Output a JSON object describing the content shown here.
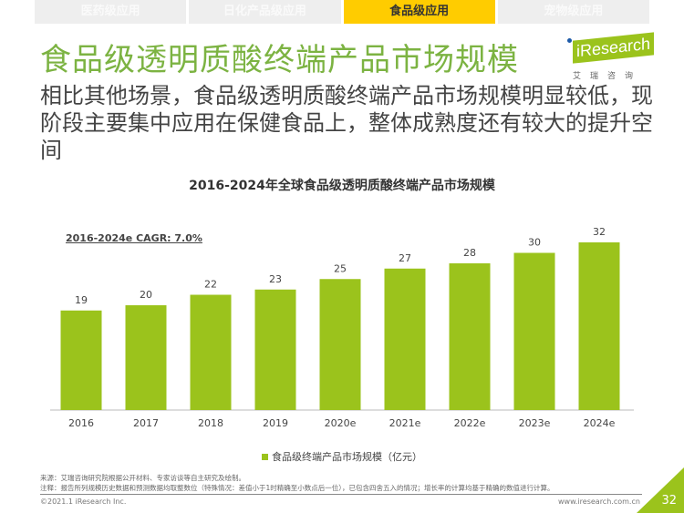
{
  "tabs": [
    {
      "label": "医药级应用"
    },
    {
      "label": "日化产品级应用"
    },
    {
      "label": "食品级应用",
      "active": true
    },
    {
      "label": "宠物级应用"
    }
  ],
  "header": {
    "title": "食品级透明质酸终端产品市场规模",
    "logo_text": "iResearch",
    "logo_cn": "艾瑞咨询"
  },
  "subtitle": "相比其他场景，食品级透明质酸终端产品市场规模明显较低，现阶段主要集中应用在保健食品上，整体成熟度还有较大的提升空间",
  "colors": {
    "accent": "#7cb342",
    "bar": "#9bc31c",
    "tab_active": "#ffcc00"
  },
  "chart_data": {
    "type": "bar",
    "title": "2016-2024年全球食品级透明质酸终端产品市场规模",
    "annotation": "2016-2024e CAGR: 7.0%",
    "categories": [
      "2016",
      "2017",
      "2018",
      "2019",
      "2020e",
      "2021e",
      "2022e",
      "2023e",
      "2024e"
    ],
    "series": [
      {
        "name": "食品级终端产品市场规模（亿元）",
        "values": [
          19,
          20,
          22,
          23,
          25,
          27,
          28,
          30,
          32
        ]
      }
    ],
    "ylim": [
      0,
      32
    ],
    "grid": false,
    "legend": "bottom"
  },
  "footer": {
    "source": "来源：艾瑞咨询研究院根据公开材料、专家访谈等自主研究及绘制。",
    "note": "注释：报告所列规模历史数据和预测数据均取整数位（特殊情况：差值小于1时精确至小数点后一位），已包含四舍五入的情况；增长率的计算均基于精确的数值进行计算。",
    "copyright": "©2021.1 iResearch Inc.",
    "url": "www.iresearch.com.cn",
    "page": "32"
  }
}
